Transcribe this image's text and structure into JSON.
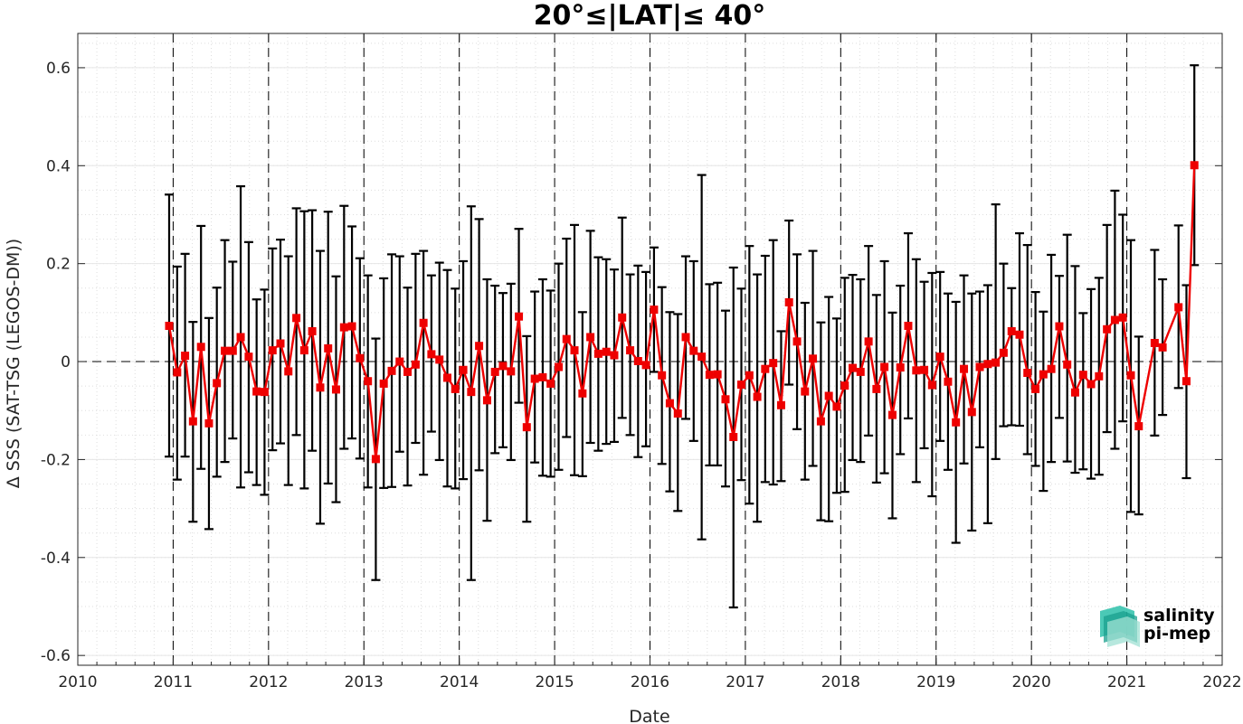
{
  "chart_data": {
    "type": "line",
    "title": "20°≤|LAT|≤ 40°",
    "xlabel": "Date",
    "ylabel": "Δ SSS (SAT-TSG (LEGOS-DM))",
    "xlim": [
      2010,
      2022
    ],
    "ylim": [
      -0.62,
      0.67
    ],
    "x_ticks": [
      "2010",
      "2011",
      "2012",
      "2013",
      "2014",
      "2015",
      "2016",
      "2017",
      "2018",
      "2019",
      "2020",
      "2021",
      "2022"
    ],
    "y_ticks": [
      "-0.6",
      "-0.4",
      "-0.2",
      "0",
      "0.2",
      "0.4",
      "0.6"
    ],
    "y_tick_values": [
      -0.6,
      -0.4,
      -0.2,
      0,
      0.2,
      0.4,
      0.6
    ],
    "grid": true,
    "year_separators": [
      2011,
      2012,
      2013,
      2014,
      2015,
      2016,
      2017,
      2018,
      2019,
      2020,
      2021
    ],
    "zero_line": true,
    "series": [
      {
        "color": "#ee0000",
        "error_bar_color": "#000000",
        "x": [
          2010.958,
          2011.042,
          2011.125,
          2011.208,
          2011.292,
          2011.375,
          2011.458,
          2011.542,
          2011.625,
          2011.708,
          2011.792,
          2011.875,
          2011.958,
          2012.042,
          2012.125,
          2012.208,
          2012.292,
          2012.375,
          2012.458,
          2012.542,
          2012.625,
          2012.708,
          2012.792,
          2012.875,
          2012.958,
          2013.042,
          2013.125,
          2013.208,
          2013.292,
          2013.375,
          2013.458,
          2013.542,
          2013.625,
          2013.708,
          2013.792,
          2013.875,
          2013.958,
          2014.042,
          2014.125,
          2014.208,
          2014.292,
          2014.375,
          2014.458,
          2014.542,
          2014.625,
          2014.708,
          2014.792,
          2014.875,
          2014.958,
          2015.042,
          2015.125,
          2015.208,
          2015.292,
          2015.375,
          2015.458,
          2015.542,
          2015.625,
          2015.708,
          2015.792,
          2015.875,
          2015.958,
          2016.042,
          2016.125,
          2016.208,
          2016.292,
          2016.375,
          2016.458,
          2016.542,
          2016.625,
          2016.708,
          2016.792,
          2016.875,
          2016.958,
          2017.042,
          2017.125,
          2017.208,
          2017.292,
          2017.375,
          2017.458,
          2017.542,
          2017.625,
          2017.708,
          2017.792,
          2017.875,
          2017.958,
          2018.042,
          2018.125,
          2018.208,
          2018.292,
          2018.375,
          2018.458,
          2018.542,
          2018.625,
          2018.708,
          2018.792,
          2018.875,
          2018.958,
          2019.042,
          2019.125,
          2019.208,
          2019.292,
          2019.375,
          2019.458,
          2019.542,
          2019.625,
          2019.708,
          2019.792,
          2019.875,
          2019.958,
          2020.042,
          2020.125,
          2020.208,
          2020.292,
          2020.375,
          2020.458,
          2020.542,
          2020.625,
          2020.708,
          2020.792,
          2020.875,
          2020.958,
          2021.042,
          2021.125,
          2021.292,
          2021.375,
          2021.542,
          2021.625,
          2021.708
        ],
        "y": [
          0.073,
          -0.022,
          0.012,
          -0.122,
          0.03,
          -0.126,
          -0.044,
          0.022,
          0.022,
          0.05,
          0.01,
          -0.061,
          -0.062,
          0.023,
          0.037,
          -0.02,
          0.089,
          0.023,
          0.062,
          -0.053,
          0.027,
          -0.057,
          0.07,
          0.072,
          0.007,
          -0.04,
          -0.199,
          -0.045,
          -0.019,
          0.0,
          -0.021,
          -0.006,
          0.079,
          0.015,
          0.004,
          -0.033,
          -0.056,
          -0.017,
          -0.062,
          0.032,
          -0.079,
          -0.021,
          -0.009,
          -0.02,
          0.092,
          -0.134,
          -0.035,
          -0.032,
          -0.045,
          -0.011,
          0.046,
          0.023,
          -0.065,
          0.05,
          0.016,
          0.02,
          0.013,
          0.09,
          0.023,
          0.001,
          -0.007,
          0.106,
          -0.028,
          -0.085,
          -0.106,
          0.05,
          0.022,
          0.01,
          -0.027,
          -0.026,
          -0.077,
          -0.154,
          -0.047,
          -0.028,
          -0.072,
          -0.015,
          -0.003,
          -0.089,
          0.121,
          0.041,
          -0.061,
          0.006,
          -0.122,
          -0.07,
          -0.092,
          -0.049,
          -0.013,
          -0.021,
          0.041,
          -0.056,
          -0.011,
          -0.109,
          -0.012,
          0.073,
          -0.018,
          -0.017,
          -0.048,
          0.01,
          -0.041,
          -0.124,
          -0.015,
          -0.103,
          -0.011,
          -0.005,
          -0.002,
          0.018,
          0.062,
          0.055,
          -0.023,
          -0.056,
          -0.026,
          -0.015,
          0.072,
          -0.006,
          -0.063,
          -0.027,
          -0.046,
          -0.03,
          0.066,
          0.085,
          0.09,
          -0.028,
          -0.132,
          0.038,
          0.029,
          0.111,
          -0.04,
          0.401
        ],
        "err_low": [
          -0.194,
          -0.241,
          -0.194,
          -0.327,
          -0.219,
          -0.342,
          -0.235,
          -0.205,
          -0.157,
          -0.257,
          -0.226,
          -0.252,
          -0.272,
          -0.181,
          -0.167,
          -0.252,
          -0.15,
          -0.259,
          -0.182,
          -0.331,
          -0.249,
          -0.287,
          -0.178,
          -0.157,
          -0.198,
          -0.257,
          -0.446,
          -0.258,
          -0.256,
          -0.184,
          -0.253,
          -0.166,
          -0.231,
          -0.143,
          -0.201,
          -0.255,
          -0.259,
          -0.24,
          -0.446,
          -0.222,
          -0.325,
          -0.187,
          -0.175,
          -0.201,
          -0.084,
          -0.327,
          -0.206,
          -0.233,
          -0.235,
          -0.221,
          -0.154,
          -0.232,
          -0.234,
          -0.166,
          -0.182,
          -0.168,
          -0.164,
          -0.115,
          -0.15,
          -0.195,
          -0.173,
          -0.021,
          -0.209,
          -0.265,
          -0.305,
          -0.117,
          -0.162,
          -0.363,
          -0.212,
          -0.212,
          -0.255,
          -0.502,
          -0.242,
          -0.29,
          -0.327,
          -0.246,
          -0.251,
          -0.244,
          -0.047,
          -0.138,
          -0.241,
          -0.213,
          -0.324,
          -0.326,
          -0.268,
          -0.266,
          -0.201,
          -0.205,
          -0.151,
          -0.247,
          -0.228,
          -0.32,
          -0.189,
          -0.116,
          -0.246,
          -0.177,
          -0.275,
          -0.162,
          -0.221,
          -0.37,
          -0.208,
          -0.345,
          -0.175,
          -0.33,
          -0.199,
          -0.132,
          -0.13,
          -0.131,
          -0.189,
          -0.213,
          -0.264,
          -0.205,
          -0.115,
          -0.204,
          -0.227,
          -0.22,
          -0.239,
          -0.231,
          -0.144,
          -0.178,
          -0.122,
          -0.307,
          -0.312,
          -0.151,
          -0.109,
          -0.054,
          -0.238,
          0.197
        ],
        "err_high": [
          0.341,
          0.194,
          0.22,
          0.081,
          0.277,
          0.089,
          0.151,
          0.248,
          0.204,
          0.358,
          0.244,
          0.127,
          0.147,
          0.231,
          0.249,
          0.215,
          0.313,
          0.307,
          0.309,
          0.226,
          0.306,
          0.174,
          0.318,
          0.276,
          0.211,
          0.176,
          0.047,
          0.17,
          0.219,
          0.215,
          0.151,
          0.22,
          0.226,
          0.176,
          0.202,
          0.187,
          0.149,
          0.205,
          0.317,
          0.291,
          0.168,
          0.155,
          0.14,
          0.159,
          0.271,
          0.052,
          0.143,
          0.168,
          0.145,
          0.2,
          0.251,
          0.279,
          0.101,
          0.267,
          0.213,
          0.209,
          0.188,
          0.294,
          0.178,
          0.196,
          0.183,
          0.233,
          0.152,
          0.101,
          0.097,
          0.215,
          0.205,
          0.381,
          0.158,
          0.161,
          0.104,
          0.192,
          0.149,
          0.236,
          0.178,
          0.216,
          0.248,
          0.062,
          0.288,
          0.219,
          0.12,
          0.226,
          0.08,
          0.132,
          0.088,
          0.171,
          0.177,
          0.168,
          0.236,
          0.136,
          0.205,
          0.1,
          0.155,
          0.262,
          0.209,
          0.163,
          0.181,
          0.183,
          0.139,
          0.122,
          0.176,
          0.139,
          0.143,
          0.156,
          0.321,
          0.2,
          0.15,
          0.262,
          0.238,
          0.142,
          0.102,
          0.218,
          0.175,
          0.259,
          0.195,
          0.099,
          0.148,
          0.171,
          0.279,
          0.349,
          0.3,
          0.248,
          0.051,
          0.228,
          0.168,
          0.278,
          0.156,
          0.605
        ]
      }
    ]
  },
  "logo": {
    "line1": "salinity",
    "line2": "pi-mep",
    "color1": "#1fb3a2",
    "color2": "#0e8a7c"
  }
}
